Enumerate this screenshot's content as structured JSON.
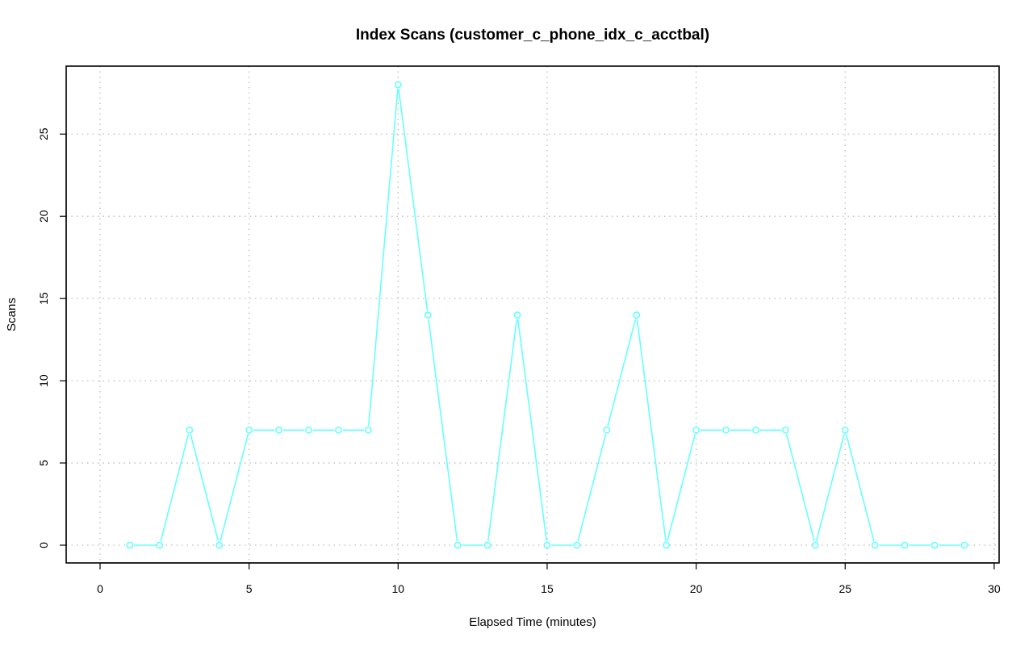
{
  "chart_data": {
    "type": "line",
    "title": "Index Scans (customer_c_phone_idx_c_acctbal)",
    "xlabel": "Elapsed Time (minutes)",
    "ylabel": "Scans",
    "xlim": [
      0,
      30
    ],
    "ylim": [
      0,
      28
    ],
    "xticks": [
      0,
      5,
      10,
      15,
      20,
      25,
      30
    ],
    "yticks": [
      0,
      5,
      10,
      15,
      20,
      25
    ],
    "grid": true,
    "legend": "none",
    "series": [
      {
        "color": "#66ffff",
        "marker": "circle",
        "x": [
          1,
          2,
          3,
          4,
          5,
          6,
          7,
          8,
          9,
          10,
          11,
          12,
          13,
          14,
          15,
          16,
          17,
          18,
          19,
          20,
          21,
          22,
          23,
          24,
          25,
          26,
          27,
          28,
          29
        ],
        "y": [
          0,
          0,
          7,
          0,
          7,
          7,
          7,
          7,
          7,
          28,
          14,
          0,
          0,
          14,
          0,
          0,
          7,
          14,
          0,
          7,
          7,
          7,
          7,
          0,
          7,
          0,
          0,
          0,
          0
        ]
      }
    ]
  }
}
